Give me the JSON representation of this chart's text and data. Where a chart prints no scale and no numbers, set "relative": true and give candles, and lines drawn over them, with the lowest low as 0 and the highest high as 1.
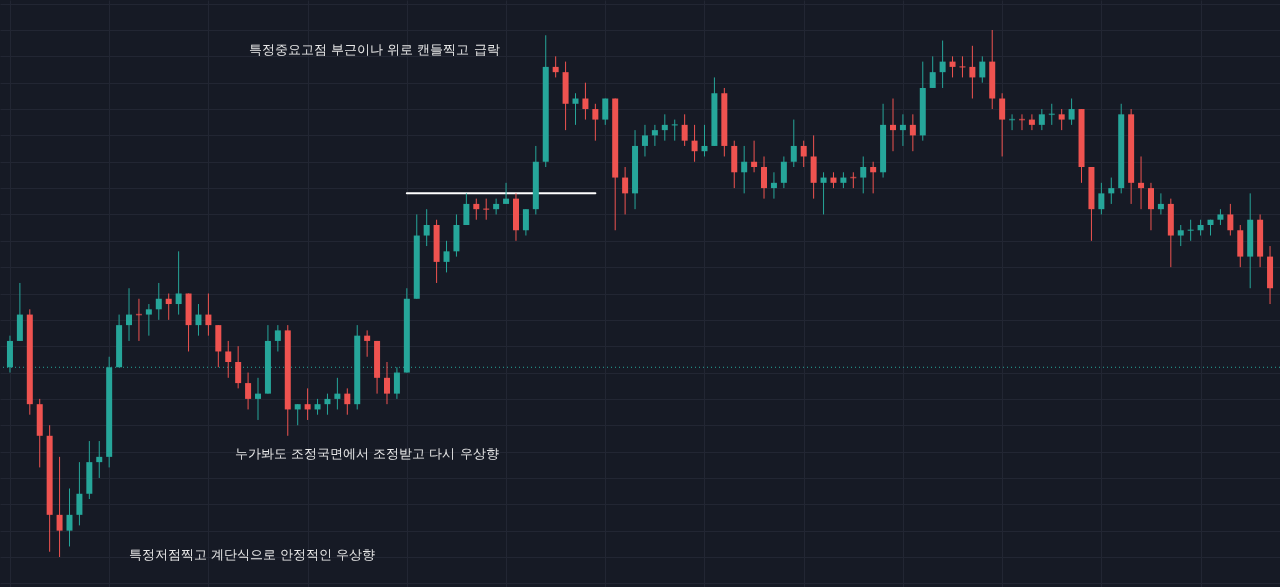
{
  "chart_data": {
    "type": "candlestick",
    "relative": true,
    "grid": true,
    "categories": [
      null,
      null,
      null,
      null,
      null,
      null,
      null,
      null,
      null,
      null,
      null,
      null,
      null,
      null,
      null,
      null,
      null,
      null,
      null,
      null,
      null,
      null,
      null,
      null,
      null,
      null,
      null,
      null,
      null,
      null,
      null,
      null,
      null,
      null,
      null,
      null,
      null,
      null,
      null,
      null,
      null,
      null,
      null,
      null,
      null,
      null,
      null,
      null,
      null,
      null,
      null,
      null,
      null,
      null,
      null,
      null,
      null,
      null,
      null,
      null,
      null,
      null,
      null,
      null,
      null,
      null,
      null,
      null,
      null,
      null,
      null,
      null,
      null,
      null,
      null,
      null,
      null,
      null,
      null,
      null,
      null,
      null,
      null,
      null,
      null,
      null,
      null,
      null,
      null,
      null,
      null,
      null,
      null,
      null,
      null,
      null,
      null,
      null,
      null,
      null,
      null,
      null,
      null,
      null,
      null,
      null,
      null,
      null,
      null,
      null,
      null,
      null,
      null,
      null,
      null,
      null,
      null,
      null,
      null,
      null,
      null,
      null,
      null,
      null,
      null,
      null,
      null,
      null
    ],
    "ohlc": [
      [
        0.36,
        0.42,
        0.35,
        0.41
      ],
      [
        0.41,
        0.52,
        0.41,
        0.46
      ],
      [
        0.46,
        0.47,
        0.27,
        0.29
      ],
      [
        0.29,
        0.3,
        0.17,
        0.23
      ],
      [
        0.23,
        0.25,
        0.01,
        0.08
      ],
      [
        0.08,
        0.19,
        0.0,
        0.05
      ],
      [
        0.05,
        0.13,
        0.02,
        0.08
      ],
      [
        0.08,
        0.18,
        0.06,
        0.12
      ],
      [
        0.12,
        0.22,
        0.11,
        0.18
      ],
      [
        0.18,
        0.22,
        0.15,
        0.19
      ],
      [
        0.19,
        0.38,
        0.17,
        0.36
      ],
      [
        0.36,
        0.46,
        0.36,
        0.44
      ],
      [
        0.44,
        0.51,
        0.41,
        0.46
      ],
      [
        0.46,
        0.49,
        0.41,
        0.46
      ],
      [
        0.46,
        0.48,
        0.42,
        0.47
      ],
      [
        0.47,
        0.52,
        0.45,
        0.49
      ],
      [
        0.49,
        0.5,
        0.45,
        0.48
      ],
      [
        0.48,
        0.58,
        0.46,
        0.5
      ],
      [
        0.5,
        0.5,
        0.39,
        0.44
      ],
      [
        0.44,
        0.48,
        0.42,
        0.46
      ],
      [
        0.46,
        0.5,
        0.42,
        0.44
      ],
      [
        0.44,
        0.44,
        0.36,
        0.39
      ],
      [
        0.39,
        0.41,
        0.34,
        0.37
      ],
      [
        0.37,
        0.4,
        0.32,
        0.33
      ],
      [
        0.33,
        0.35,
        0.28,
        0.3
      ],
      [
        0.3,
        0.34,
        0.26,
        0.31
      ],
      [
        0.31,
        0.44,
        0.31,
        0.41
      ],
      [
        0.41,
        0.44,
        0.39,
        0.43
      ],
      [
        0.43,
        0.44,
        0.23,
        0.28
      ],
      [
        0.28,
        0.29,
        0.25,
        0.29
      ],
      [
        0.29,
        0.32,
        0.26,
        0.28
      ],
      [
        0.28,
        0.3,
        0.27,
        0.29
      ],
      [
        0.29,
        0.31,
        0.27,
        0.3
      ],
      [
        0.3,
        0.34,
        0.28,
        0.31
      ],
      [
        0.31,
        0.32,
        0.27,
        0.29
      ],
      [
        0.29,
        0.44,
        0.28,
        0.42
      ],
      [
        0.42,
        0.43,
        0.38,
        0.41
      ],
      [
        0.41,
        0.41,
        0.31,
        0.34
      ],
      [
        0.34,
        0.37,
        0.29,
        0.31
      ],
      [
        0.31,
        0.36,
        0.3,
        0.35
      ],
      [
        0.35,
        0.51,
        0.35,
        0.49
      ],
      [
        0.49,
        0.65,
        0.49,
        0.61
      ],
      [
        0.61,
        0.66,
        0.59,
        0.63
      ],
      [
        0.63,
        0.64,
        0.52,
        0.56
      ],
      [
        0.56,
        0.6,
        0.54,
        0.58
      ],
      [
        0.58,
        0.65,
        0.57,
        0.63
      ],
      [
        0.63,
        0.69,
        0.63,
        0.67
      ],
      [
        0.67,
        0.68,
        0.64,
        0.66
      ],
      [
        0.66,
        0.68,
        0.64,
        0.66
      ],
      [
        0.66,
        0.68,
        0.65,
        0.67
      ],
      [
        0.67,
        0.71,
        0.67,
        0.68
      ],
      [
        0.68,
        0.69,
        0.6,
        0.62
      ],
      [
        0.62,
        0.66,
        0.61,
        0.66
      ],
      [
        0.66,
        0.78,
        0.65,
        0.75
      ],
      [
        0.75,
        0.99,
        0.74,
        0.93
      ],
      [
        0.93,
        0.95,
        0.91,
        0.92
      ],
      [
        0.92,
        0.94,
        0.81,
        0.86
      ],
      [
        0.86,
        0.88,
        0.82,
        0.87
      ],
      [
        0.87,
        0.9,
        0.83,
        0.85
      ],
      [
        0.85,
        0.86,
        0.79,
        0.83
      ],
      [
        0.83,
        0.87,
        0.82,
        0.87
      ],
      [
        0.87,
        0.87,
        0.62,
        0.72
      ],
      [
        0.72,
        0.74,
        0.65,
        0.69
      ],
      [
        0.69,
        0.81,
        0.66,
        0.78
      ],
      [
        0.78,
        0.82,
        0.76,
        0.8
      ],
      [
        0.8,
        0.82,
        0.78,
        0.81
      ],
      [
        0.81,
        0.84,
        0.79,
        0.82
      ],
      [
        0.82,
        0.83,
        0.79,
        0.82
      ],
      [
        0.82,
        0.84,
        0.78,
        0.79
      ],
      [
        0.79,
        0.82,
        0.75,
        0.77
      ],
      [
        0.77,
        0.82,
        0.76,
        0.78
      ],
      [
        0.78,
        0.91,
        0.78,
        0.88
      ],
      [
        0.88,
        0.89,
        0.76,
        0.78
      ],
      [
        0.78,
        0.79,
        0.7,
        0.73
      ],
      [
        0.73,
        0.78,
        0.69,
        0.75
      ],
      [
        0.75,
        0.79,
        0.73,
        0.74
      ],
      [
        0.74,
        0.76,
        0.68,
        0.7
      ],
      [
        0.7,
        0.73,
        0.68,
        0.71
      ],
      [
        0.71,
        0.76,
        0.7,
        0.75
      ],
      [
        0.75,
        0.83,
        0.74,
        0.78
      ],
      [
        0.78,
        0.79,
        0.74,
        0.76
      ],
      [
        0.76,
        0.8,
        0.68,
        0.71
      ],
      [
        0.71,
        0.73,
        0.65,
        0.72
      ],
      [
        0.72,
        0.73,
        0.7,
        0.71
      ],
      [
        0.71,
        0.73,
        0.7,
        0.72
      ],
      [
        0.72,
        0.73,
        0.7,
        0.72
      ],
      [
        0.72,
        0.76,
        0.69,
        0.74
      ],
      [
        0.74,
        0.75,
        0.69,
        0.73
      ],
      [
        0.73,
        0.86,
        0.72,
        0.82
      ],
      [
        0.82,
        0.87,
        0.77,
        0.81
      ],
      [
        0.81,
        0.84,
        0.78,
        0.82
      ],
      [
        0.82,
        0.84,
        0.77,
        0.8
      ],
      [
        0.8,
        0.94,
        0.79,
        0.89
      ],
      [
        0.89,
        0.95,
        0.89,
        0.92
      ],
      [
        0.92,
        0.98,
        0.89,
        0.94
      ],
      [
        0.94,
        0.95,
        0.91,
        0.93
      ],
      [
        0.93,
        0.95,
        0.91,
        0.93
      ],
      [
        0.93,
        0.97,
        0.87,
        0.91
      ],
      [
        0.91,
        0.95,
        0.9,
        0.94
      ],
      [
        0.94,
        1.0,
        0.85,
        0.87
      ],
      [
        0.87,
        0.88,
        0.76,
        0.83
      ],
      [
        0.83,
        0.84,
        0.81,
        0.83
      ],
      [
        0.83,
        0.84,
        0.81,
        0.83
      ],
      [
        0.83,
        0.84,
        0.81,
        0.82
      ],
      [
        0.82,
        0.85,
        0.81,
        0.84
      ],
      [
        0.84,
        0.86,
        0.82,
        0.84
      ],
      [
        0.84,
        0.85,
        0.81,
        0.83
      ],
      [
        0.83,
        0.87,
        0.82,
        0.85
      ],
      [
        0.85,
        0.85,
        0.71,
        0.74
      ],
      [
        0.74,
        0.74,
        0.6,
        0.66
      ],
      [
        0.66,
        0.71,
        0.65,
        0.69
      ],
      [
        0.69,
        0.72,
        0.67,
        0.7
      ],
      [
        0.7,
        0.86,
        0.69,
        0.84
      ],
      [
        0.84,
        0.85,
        0.67,
        0.71
      ],
      [
        0.71,
        0.76,
        0.66,
        0.7
      ],
      [
        0.7,
        0.71,
        0.62,
        0.66
      ],
      [
        0.66,
        0.69,
        0.65,
        0.67
      ],
      [
        0.67,
        0.68,
        0.55,
        0.61
      ],
      [
        0.61,
        0.63,
        0.59,
        0.62
      ],
      [
        0.62,
        0.64,
        0.6,
        0.62
      ],
      [
        0.62,
        0.64,
        0.61,
        0.63
      ],
      [
        0.63,
        0.64,
        0.61,
        0.64
      ],
      [
        0.64,
        0.66,
        0.63,
        0.65
      ],
      [
        0.65,
        0.67,
        0.61,
        0.62
      ],
      [
        0.62,
        0.63,
        0.55,
        0.57
      ],
      [
        0.57,
        0.69,
        0.51,
        0.64
      ],
      [
        0.64,
        0.65,
        0.55,
        0.57
      ],
      [
        0.57,
        0.59,
        0.48,
        0.51
      ]
    ],
    "colors": [
      "#26a69a",
      "#26a69a",
      "#ef5350",
      "#ef5350",
      "#ef5350",
      "#ef5350",
      "#26a69a",
      "#26a69a",
      "#26a69a",
      "#26a69a",
      "#26a69a",
      "#26a69a",
      "#26a69a",
      "#ef5350",
      "#26a69a",
      "#26a69a",
      "#ef5350",
      "#26a69a",
      "#ef5350",
      "#26a69a",
      "#ef5350",
      "#ef5350",
      "#ef5350",
      "#ef5350",
      "#ef5350",
      "#26a69a",
      "#26a69a",
      "#26a69a",
      "#ef5350",
      "#26a69a",
      "#ef5350",
      "#26a69a",
      "#26a69a",
      "#26a69a",
      "#ef5350",
      "#26a69a",
      "#ef5350",
      "#ef5350",
      "#ef5350",
      "#26a69a",
      "#26a69a",
      "#26a69a",
      "#26a69a",
      "#ef5350",
      "#26a69a",
      "#26a69a",
      "#26a69a",
      "#ef5350",
      "#ef5350",
      "#26a69a",
      "#26a69a",
      "#ef5350",
      "#26a69a",
      "#26a69a",
      "#26a69a",
      "#ef5350",
      "#ef5350",
      "#26a69a",
      "#ef5350",
      "#ef5350",
      "#26a69a",
      "#ef5350",
      "#ef5350",
      "#26a69a",
      "#26a69a",
      "#26a69a",
      "#26a69a",
      "#26a69a",
      "#ef5350",
      "#ef5350",
      "#26a69a",
      "#26a69a",
      "#ef5350",
      "#ef5350",
      "#26a69a",
      "#ef5350",
      "#ef5350",
      "#26a69a",
      "#26a69a",
      "#26a69a",
      "#ef5350",
      "#ef5350",
      "#26a69a",
      "#ef5350",
      "#26a69a",
      "#ef5350",
      "#26a69a",
      "#ef5350",
      "#26a69a",
      "#ef5350",
      "#26a69a",
      "#ef5350",
      "#26a69a",
      "#26a69a",
      "#26a69a",
      "#ef5350",
      "#ef5350",
      "#ef5350",
      "#26a69a",
      "#ef5350",
      "#ef5350",
      "#26a69a",
      "#ef5350",
      "#ef5350",
      "#26a69a",
      "#26a69a",
      "#ef5350",
      "#26a69a",
      "#ef5350",
      "#ef5350",
      "#26a69a",
      "#26a69a",
      "#26a69a",
      "#ef5350",
      "#ef5350",
      "#ef5350",
      "#26a69a",
      "#ef5350",
      "#26a69a",
      "#26a69a",
      "#26a69a",
      "#26a69a",
      "#26a69a",
      "#ef5350",
      "#ef5350",
      "#26a69a",
      "#ef5350",
      "#ef5350"
    ],
    "series": [
      {
        "type": "line",
        "color": "#ffffff",
        "values": [
          null,
          null,
          null,
          null,
          null,
          null,
          null,
          null,
          null,
          null,
          null,
          null,
          null,
          null,
          null,
          null,
          null,
          null,
          null,
          null,
          null,
          null,
          null,
          null,
          null,
          null,
          null,
          null,
          null,
          null,
          null,
          null,
          null,
          null,
          null,
          null,
          null,
          null,
          null,
          null,
          0.69,
          0.69,
          0.69,
          0.69,
          0.69,
          0.69,
          0.69,
          0.69,
          0.69,
          0.69,
          0.69,
          0.69,
          0.69,
          0.69,
          0.69,
          0.69,
          0.69,
          0.69,
          0.69,
          0.69,
          null,
          null,
          null,
          null,
          null,
          null,
          null,
          null,
          null,
          null,
          null,
          null,
          null,
          null,
          null,
          null,
          null,
          null,
          null,
          null,
          null,
          null,
          null,
          null,
          null,
          null,
          null,
          null,
          null,
          null,
          null,
          null,
          null,
          null,
          null,
          null,
          null,
          null,
          null,
          null,
          null,
          null,
          null,
          null,
          null,
          null,
          null,
          null,
          null,
          null,
          null,
          null,
          null,
          null,
          null,
          null,
          null,
          null,
          null,
          null,
          null,
          null,
          null,
          null,
          null,
          null,
          null,
          null
        ]
      }
    ],
    "ref_lines": [
      {
        "axis": "y",
        "value": 0.36,
        "color": "#26a69a",
        "line_style": "dotted"
      }
    ],
    "annotations": [
      "특정중요고점 부근이나 위로 캔들찍고 급락",
      "누가봐도 조정국면에서 조정받고 다시 우상향",
      "특정저점찍고 계단식으로 안정적인 우상향"
    ]
  }
}
